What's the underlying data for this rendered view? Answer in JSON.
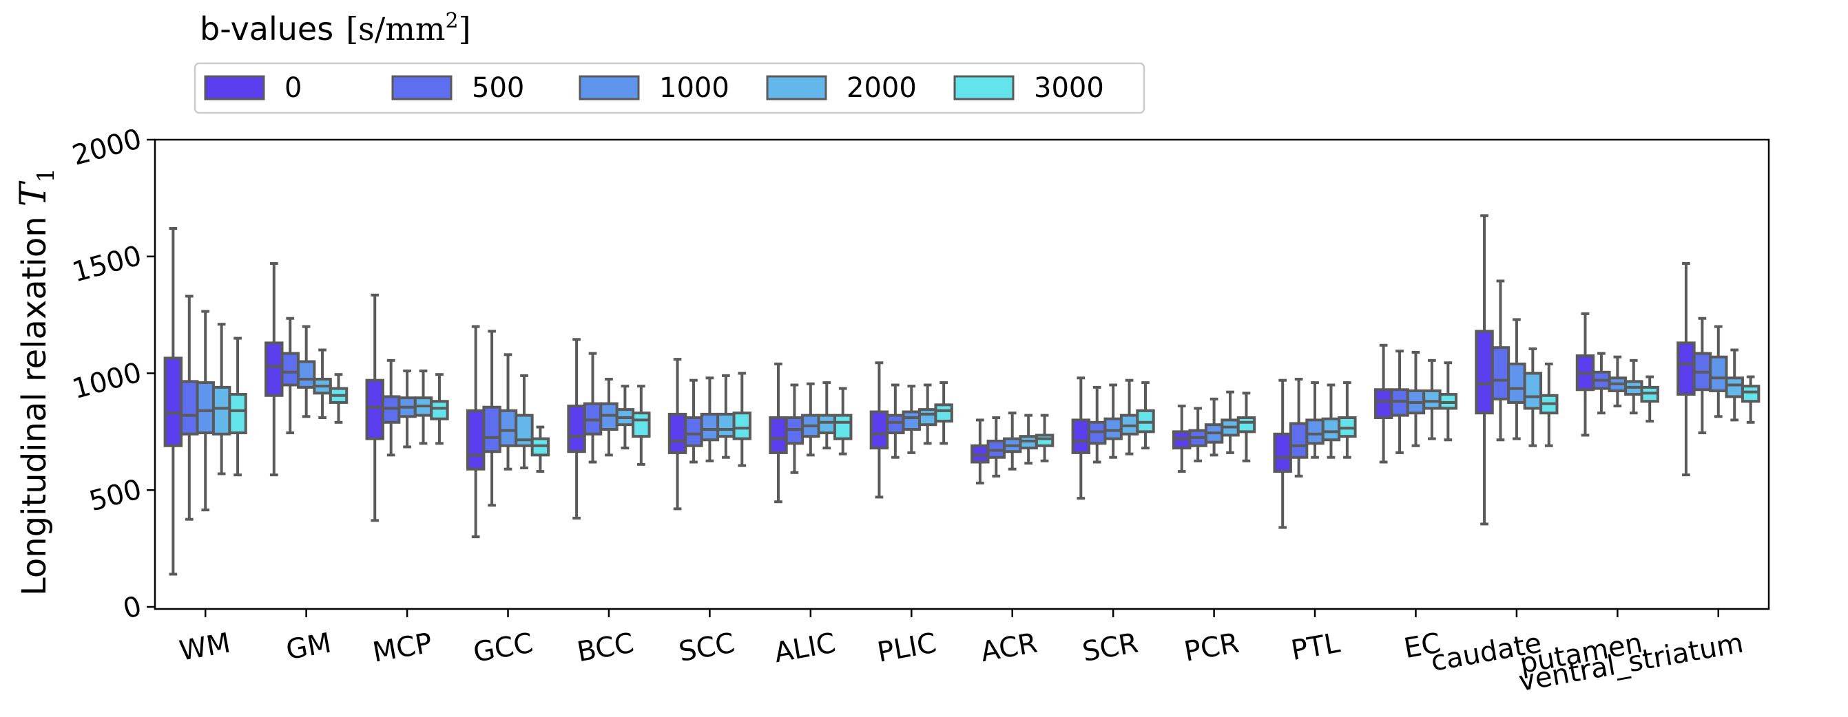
{
  "chart_data": {
    "type": "boxplot",
    "ylabel": "Longitudinal relaxation",
    "ylabel_symbol": "T",
    "ylabel_subscript": "1",
    "ylim": [
      0,
      2000
    ],
    "yticks": [
      0,
      500,
      1000,
      1500,
      2000
    ],
    "legend": {
      "title": "b-values",
      "unit_open": "[s/mm",
      "unit_sup": "2",
      "unit_close": "]",
      "placement": "top-left, above axes"
    },
    "categories": [
      "WM",
      "GM",
      "MCP",
      "GCC",
      "BCC",
      "SCC",
      "ALIC",
      "PLIC",
      "ACR",
      "SCR",
      "PCR",
      "PTL",
      "EC",
      "caudate",
      "putamen",
      "ventral_striatum"
    ],
    "series": [
      {
        "name": "0",
        "color": "#5a3ded",
        "boxes": [
          [
            140,
            690,
            830,
            1065,
            1620
          ],
          [
            565,
            905,
            1030,
            1130,
            1470
          ],
          [
            370,
            720,
            855,
            970,
            1335
          ],
          [
            300,
            590,
            650,
            840,
            1200
          ],
          [
            380,
            665,
            730,
            860,
            1145
          ],
          [
            420,
            660,
            710,
            825,
            1060
          ],
          [
            450,
            660,
            720,
            810,
            1040
          ],
          [
            470,
            680,
            740,
            835,
            1045
          ],
          [
            530,
            620,
            650,
            690,
            800
          ],
          [
            465,
            660,
            710,
            800,
            980
          ],
          [
            580,
            680,
            720,
            750,
            860
          ],
          [
            340,
            580,
            640,
            740,
            970
          ],
          [
            620,
            810,
            880,
            930,
            1120
          ],
          [
            355,
            830,
            955,
            1180,
            1675
          ],
          [
            735,
            930,
            1000,
            1075,
            1255
          ],
          [
            565,
            910,
            1040,
            1130,
            1470
          ]
        ]
      },
      {
        "name": "500",
        "color": "#5d6fef",
        "boxes": [
          [
            375,
            740,
            820,
            965,
            1330
          ],
          [
            745,
            950,
            1005,
            1085,
            1235
          ],
          [
            650,
            790,
            850,
            900,
            1055
          ],
          [
            435,
            665,
            725,
            855,
            1180
          ],
          [
            620,
            740,
            800,
            870,
            1085
          ],
          [
            620,
            690,
            740,
            810,
            970
          ],
          [
            575,
            700,
            760,
            810,
            950
          ],
          [
            640,
            745,
            790,
            820,
            950
          ],
          [
            560,
            640,
            670,
            710,
            810
          ],
          [
            620,
            700,
            750,
            790,
            940
          ],
          [
            625,
            690,
            725,
            755,
            850
          ],
          [
            560,
            640,
            690,
            785,
            975
          ],
          [
            660,
            820,
            880,
            930,
            1095
          ],
          [
            715,
            890,
            970,
            1110,
            1395
          ],
          [
            830,
            935,
            970,
            1005,
            1085
          ],
          [
            745,
            930,
            1005,
            1085,
            1235
          ]
        ]
      },
      {
        "name": "1000",
        "color": "#6095ed",
        "boxes": [
          [
            415,
            745,
            840,
            960,
            1265
          ],
          [
            815,
            940,
            975,
            1050,
            1200
          ],
          [
            685,
            815,
            855,
            895,
            1010
          ],
          [
            590,
            690,
            755,
            840,
            1080
          ],
          [
            650,
            760,
            820,
            870,
            975
          ],
          [
            625,
            715,
            760,
            825,
            980
          ],
          [
            650,
            730,
            775,
            820,
            955
          ],
          [
            660,
            760,
            810,
            835,
            945
          ],
          [
            590,
            665,
            690,
            720,
            830
          ],
          [
            640,
            720,
            755,
            805,
            950
          ],
          [
            650,
            705,
            745,
            780,
            890
          ],
          [
            640,
            700,
            740,
            800,
            960
          ],
          [
            690,
            830,
            875,
            925,
            1090
          ],
          [
            720,
            875,
            935,
            1040,
            1230
          ],
          [
            860,
            925,
            955,
            980,
            1070
          ],
          [
            815,
            925,
            980,
            1070,
            1200
          ]
        ]
      },
      {
        "name": "2000",
        "color": "#63b7ea",
        "boxes": [
          [
            570,
            740,
            850,
            940,
            1210
          ],
          [
            810,
            915,
            945,
            975,
            1100
          ],
          [
            700,
            820,
            860,
            895,
            1010
          ],
          [
            595,
            690,
            715,
            820,
            990
          ],
          [
            680,
            780,
            810,
            845,
            945
          ],
          [
            640,
            730,
            760,
            825,
            990
          ],
          [
            680,
            745,
            790,
            820,
            960
          ],
          [
            700,
            780,
            825,
            845,
            950
          ],
          [
            615,
            680,
            710,
            730,
            820
          ],
          [
            655,
            740,
            775,
            820,
            970
          ],
          [
            660,
            735,
            770,
            800,
            920
          ],
          [
            640,
            715,
            750,
            805,
            950
          ],
          [
            720,
            850,
            880,
            925,
            1055
          ],
          [
            690,
            850,
            900,
            1000,
            1105
          ],
          [
            830,
            910,
            940,
            965,
            1055
          ],
          [
            800,
            900,
            950,
            980,
            1100
          ]
        ]
      },
      {
        "name": "3000",
        "color": "#63e3ea",
        "boxes": [
          [
            565,
            745,
            840,
            910,
            1150
          ],
          [
            790,
            875,
            905,
            935,
            995
          ],
          [
            700,
            805,
            850,
            880,
            995
          ],
          [
            580,
            650,
            690,
            720,
            770
          ],
          [
            610,
            730,
            800,
            830,
            945
          ],
          [
            605,
            720,
            765,
            830,
            1000
          ],
          [
            655,
            720,
            790,
            820,
            935
          ],
          [
            700,
            795,
            840,
            865,
            960
          ],
          [
            625,
            690,
            720,
            735,
            820
          ],
          [
            680,
            750,
            790,
            840,
            960
          ],
          [
            625,
            750,
            790,
            810,
            915
          ],
          [
            640,
            730,
            765,
            810,
            960
          ],
          [
            715,
            850,
            875,
            910,
            1045
          ],
          [
            690,
            830,
            870,
            905,
            1040
          ],
          [
            795,
            880,
            915,
            940,
            985
          ],
          [
            790,
            880,
            920,
            945,
            985
          ]
        ]
      }
    ]
  }
}
